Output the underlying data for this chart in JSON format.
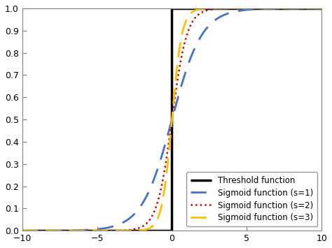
{
  "xlim": [
    -10,
    10
  ],
  "ylim": [
    0,
    1
  ],
  "xticks": [
    -10,
    -5,
    0,
    5,
    10
  ],
  "yticks": [
    0,
    0.1,
    0.2,
    0.3,
    0.4,
    0.5,
    0.6,
    0.7,
    0.8,
    0.9,
    1
  ],
  "threshold_color": "#000000",
  "threshold_lw": 2.5,
  "sigmoid_s1_color": "#4472C4",
  "sigmoid_s1_lw": 2.0,
  "sigmoid_s1_dash": [
    8,
    5
  ],
  "sigmoid_s2_color": "#CC0000",
  "sigmoid_s2_lw": 1.8,
  "sigmoid_s3_color": "#FFC000",
  "sigmoid_s3_lw": 2.0,
  "sigmoid_s3_dash": [
    8,
    4
  ],
  "legend_loc": "lower right",
  "legend_fontsize": 8.5,
  "background_color": "#ffffff",
  "label_threshold": "Threshold function",
  "label_s1": "Sigmoid function (s=1)",
  "label_s2": "Sigmoid function (s=2)",
  "label_s3": "Sigmoid function (s=3)"
}
